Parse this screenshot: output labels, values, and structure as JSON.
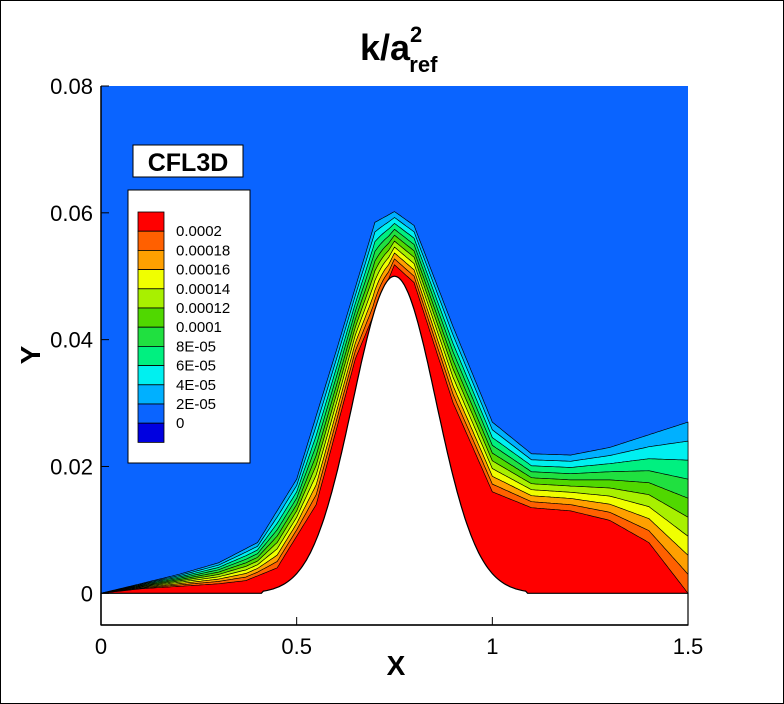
{
  "chart_data": {
    "type": "contour",
    "title": {
      "main": "k/a",
      "superscript": "2",
      "subscript": "ref"
    },
    "xlabel": "X",
    "ylabel": "Y",
    "xlim": [
      0,
      1.5
    ],
    "ylim": [
      -0.005,
      0.08
    ],
    "x_ticks": [
      "0",
      "0.5",
      "1",
      "1.5"
    ],
    "x_tick_values": [
      0,
      0.5,
      1,
      1.5
    ],
    "y_ticks": [
      "0",
      "0.02",
      "0.04",
      "0.06",
      "0.08"
    ],
    "y_tick_values": [
      0,
      0.02,
      0.04,
      0.06,
      0.08
    ],
    "annotation": "CFL3D",
    "legend": {
      "placement": "upper-left",
      "labels": [
        "0.0002",
        "0.00018",
        "0.00016",
        "0.00014",
        "0.00012",
        "0.0001",
        "8E-05",
        "6E-05",
        "4E-05",
        "2E-05",
        "0"
      ],
      "colors": [
        "#ff0000",
        "#ff6000",
        "#ffa000",
        "#f0ff00",
        "#a8f000",
        "#50d800",
        "#20e040",
        "#00f080",
        "#00f0f0",
        "#00b0ff",
        "#0a64ff",
        "#0000e0"
      ]
    },
    "background_color": "#0a64ff",
    "band_colors_outer_to_inner": [
      "#00b0ff",
      "#00f0f0",
      "#00f080",
      "#20e040",
      "#50d800",
      "#a8f000",
      "#f0ff00",
      "#ffa000",
      "#ff6000"
    ],
    "peak_color": "#ff0000",
    "wall": {
      "type": "bump",
      "center_x": 0.75,
      "height": 0.05,
      "width": 0.15
    },
    "outer_contour_2E-05": [
      [
        0,
        0
      ],
      [
        0.1,
        0.0015
      ],
      [
        0.2,
        0.003
      ],
      [
        0.3,
        0.0048
      ],
      [
        0.4,
        0.008
      ],
      [
        0.5,
        0.018
      ],
      [
        0.6,
        0.038
      ],
      [
        0.7,
        0.0585
      ],
      [
        0.75,
        0.0602
      ],
      [
        0.8,
        0.058
      ],
      [
        0.9,
        0.042
      ],
      [
        1.0,
        0.027
      ],
      [
        1.1,
        0.022
      ],
      [
        1.2,
        0.0218
      ],
      [
        1.3,
        0.023
      ],
      [
        1.4,
        0.025
      ],
      [
        1.5,
        0.027
      ]
    ],
    "inner_contour_0.0002": [
      [
        0,
        0
      ],
      [
        0.1,
        0.0007
      ],
      [
        0.2,
        0.0011
      ],
      [
        0.3,
        0.0015
      ],
      [
        0.37,
        0.002
      ],
      [
        0.45,
        0.004
      ],
      [
        0.55,
        0.014
      ],
      [
        0.65,
        0.037
      ],
      [
        0.75,
        0.0518
      ],
      [
        0.8,
        0.049
      ],
      [
        0.9,
        0.03
      ],
      [
        1.0,
        0.016
      ],
      [
        1.1,
        0.0135
      ],
      [
        1.2,
        0.013
      ],
      [
        1.3,
        0.0115
      ],
      [
        1.4,
        0.008
      ],
      [
        1.5,
        0.0
      ]
    ]
  }
}
